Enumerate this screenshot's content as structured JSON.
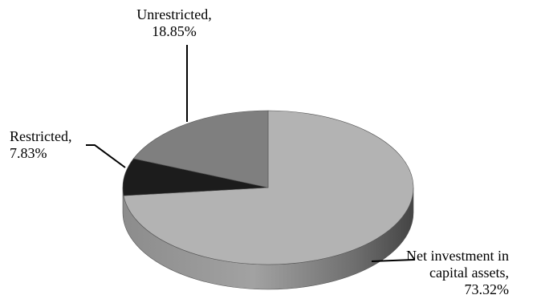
{
  "chart_data": {
    "type": "pie",
    "title": "",
    "style": "3d-exploded-none",
    "slices": [
      {
        "label_lines": [
          "Net investment in",
          "capital assets,",
          "73.32%"
        ],
        "value": 73.32,
        "color": "#b3b3b3"
      },
      {
        "label_lines": [
          "Restricted,",
          "7.83%"
        ],
        "value": 7.83,
        "color": "#1c1c1c"
      },
      {
        "label_lines": [
          "Unrestricted,",
          "18.85%"
        ],
        "value": 18.85,
        "color": "#7f7f7f"
      }
    ]
  }
}
